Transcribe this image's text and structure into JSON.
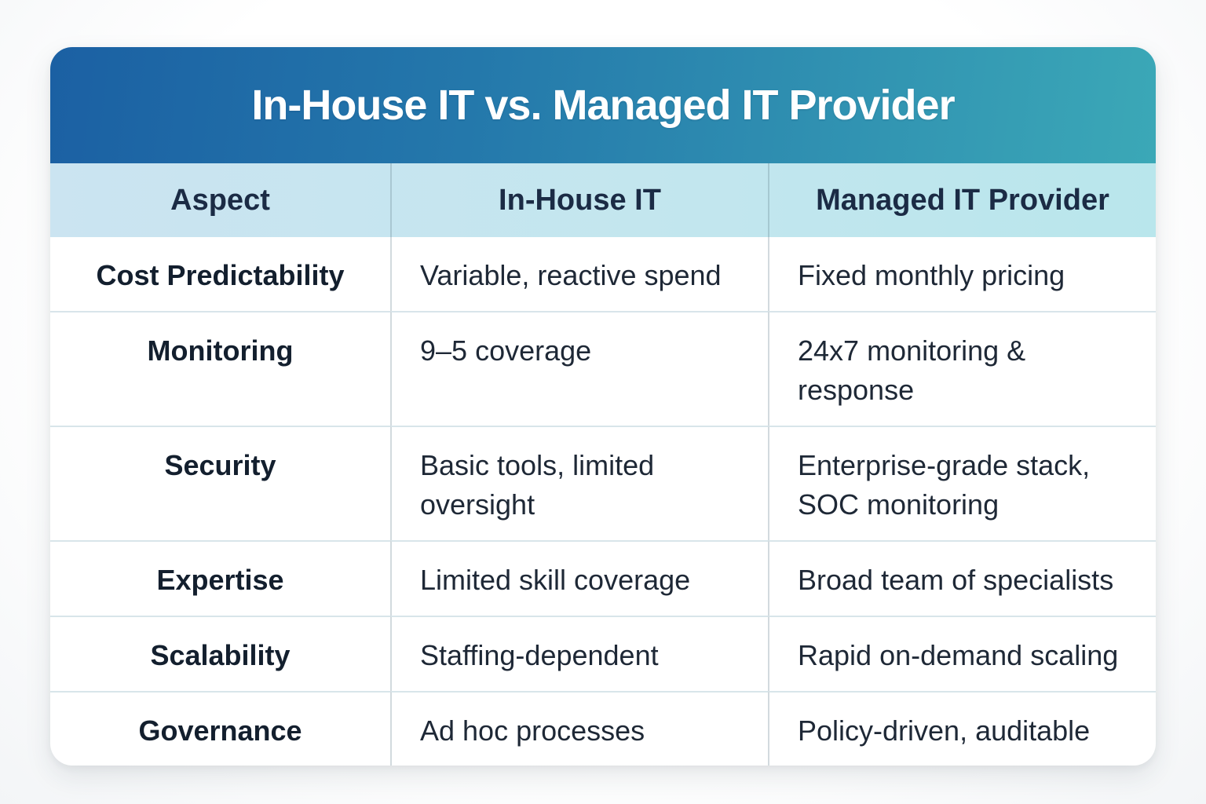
{
  "title": "In-House IT vs. Managed IT Provider",
  "table": {
    "columns": [
      "Aspect",
      "In-House IT",
      "Managed IT Provider"
    ],
    "rows": [
      {
        "aspect": "Cost Predictability",
        "in_house": "Variable, reactive spend",
        "managed": "Fixed monthly pricing"
      },
      {
        "aspect": "Monitoring",
        "in_house": "9–5 coverage",
        "managed": "24x7 monitoring & response"
      },
      {
        "aspect": "Security",
        "in_house": "Basic tools, limited oversight",
        "managed": "Enterprise-grade stack, SOC monitoring"
      },
      {
        "aspect": "Expertise",
        "in_house": "Limited skill coverage",
        "managed": "Broad team of specialists"
      },
      {
        "aspect": "Scalability",
        "in_house": "Staffing-dependent",
        "managed": "Rapid on-demand scaling"
      },
      {
        "aspect": "Governance",
        "in_house": "Ad hoc processes",
        "managed": "Policy-driven, auditable"
      }
    ]
  },
  "colors": {
    "header_gradient_start": "#1b60a3",
    "header_gradient_end": "#3ba8b7",
    "column_header_bg_start": "#cbe4f1",
    "column_header_bg_end": "#b9e6ec",
    "header_text": "#ffffff",
    "column_header_text": "#1b2b45",
    "body_text": "#1e2836",
    "aspect_text": "#131f2e",
    "row_divider": "#d8e5ea",
    "card_bg": "#ffffff"
  },
  "chart_data": {
    "type": "table",
    "title": "In-House IT vs. Managed IT Provider",
    "columns": [
      "Aspect",
      "In-House IT",
      "Managed IT Provider"
    ],
    "rows": [
      [
        "Cost Predictability",
        "Variable, reactive spend",
        "Fixed monthly pricing"
      ],
      [
        "Monitoring",
        "9–5 coverage",
        "24x7 monitoring & response"
      ],
      [
        "Security",
        "Basic tools, limited oversight",
        "Enterprise-grade stack, SOC monitoring"
      ],
      [
        "Expertise",
        "Limited skill coverage",
        "Broad team of specialists"
      ],
      [
        "Scalability",
        "Staffing-dependent",
        "Rapid on-demand scaling"
      ],
      [
        "Governance",
        "Ad hoc processes",
        "Policy-driven, auditable"
      ]
    ],
    "layout_hints": {
      "header_style": "blue-to-teal gradient banner",
      "column_header_style": "light blue band, bold navy text, centered",
      "first_column": "bold, centered",
      "other_columns": "regular weight, left-aligned",
      "grid": "thin light dividers between rows and columns"
    }
  }
}
